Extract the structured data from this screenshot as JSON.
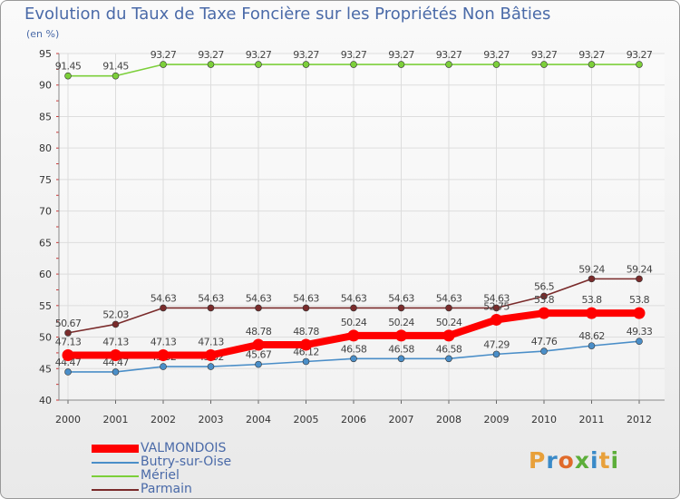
{
  "chart_data": {
    "type": "line",
    "title": "Evolution du Taux de Taxe Foncière sur les Propriétés Non Bâties",
    "ylabel": "(en %)",
    "xlabel": "",
    "ylim": [
      40,
      95
    ],
    "yticks": [
      40,
      45,
      50,
      55,
      60,
      65,
      70,
      75,
      80,
      85,
      90,
      95
    ],
    "categories": [
      "2000",
      "2001",
      "2002",
      "2003",
      "2004",
      "2005",
      "2006",
      "2007",
      "2008",
      "2009",
      "2010",
      "2011",
      "2012"
    ],
    "series": [
      {
        "name": "Mériel",
        "color": "#7ccf3a",
        "values": [
          91.45,
          91.45,
          93.27,
          93.27,
          93.27,
          93.27,
          93.27,
          93.27,
          93.27,
          93.27,
          93.27,
          93.27,
          93.27
        ],
        "labels": [
          "91.45",
          "91.45",
          "93.27",
          "93.27",
          "93.27",
          "93.27",
          "93.27",
          "93.27",
          "93.27",
          "93.27",
          "93.27",
          "93.27",
          "93.27"
        ]
      },
      {
        "name": "Parmain",
        "color": "#7a2b2b",
        "values": [
          50.67,
          52.03,
          54.63,
          54.63,
          54.63,
          54.63,
          54.63,
          54.63,
          54.63,
          54.63,
          56.5,
          59.24,
          59.24
        ],
        "labels": [
          "50.67",
          "52.03",
          "54.63",
          "54.63",
          "54.63",
          "54.63",
          "54.63",
          "54.63",
          "54.63",
          "54.63",
          "56.5",
          "59.24",
          "59.24"
        ]
      },
      {
        "name": "Butry-sur-Oise",
        "color": "#4a8ec8",
        "values": [
          44.47,
          44.47,
          45.32,
          45.32,
          45.67,
          46.12,
          46.58,
          46.58,
          46.58,
          47.29,
          47.76,
          48.62,
          49.33
        ],
        "labels": [
          "44.47",
          "44.47",
          "45.32",
          "45.32",
          "45.67",
          "46.12",
          "46.58",
          "46.58",
          "46.58",
          "47.29",
          "47.76",
          "48.62",
          "49.33"
        ]
      },
      {
        "name": "VALMONDOIS",
        "color": "#ff0000",
        "values": [
          47.13,
          47.13,
          47.13,
          47.13,
          48.78,
          48.78,
          50.24,
          50.24,
          50.24,
          52.75,
          53.8,
          53.8,
          53.8
        ],
        "labels": [
          "47.13",
          "47.13",
          "47.13",
          "47.13",
          "48.78",
          "48.78",
          "50.24",
          "50.24",
          "50.24",
          "52.75",
          "53.8",
          "53.8",
          "53.8"
        ]
      }
    ],
    "legend": [
      "VALMONDOIS",
      "Butry-sur-Oise",
      "Mériel",
      "Parmain"
    ],
    "legend_position": "bottom-left"
  },
  "logo": {
    "text": "Proxiti"
  }
}
